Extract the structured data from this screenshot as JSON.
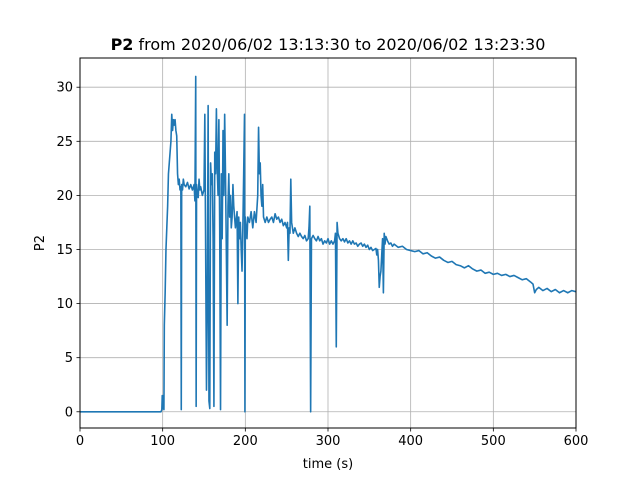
{
  "chart_data": {
    "type": "line",
    "title_bold": "P2",
    "title_rest": " from 2020/06/02 13:13:30 to 2020/06/02 13:23:30",
    "xlabel": "time (s)",
    "ylabel": "P2",
    "xlim": [
      0,
      600
    ],
    "ylim": [
      -1.5,
      32.7
    ],
    "xticks": [
      0,
      100,
      200,
      300,
      400,
      500,
      600
    ],
    "yticks": [
      0,
      5,
      10,
      15,
      20,
      25,
      30
    ],
    "grid": true,
    "legend": "none",
    "series": [
      {
        "color": "#1f77b4",
        "points": [
          [
            0,
            0
          ],
          [
            98,
            0
          ],
          [
            99,
            0.2
          ],
          [
            99.5,
            1.5
          ],
          [
            100,
            0.3
          ],
          [
            101,
            1.5
          ],
          [
            101.5,
            0.2
          ],
          [
            102,
            8
          ],
          [
            103,
            11
          ],
          [
            104,
            15
          ],
          [
            105,
            17
          ],
          [
            106,
            19
          ],
          [
            107,
            22
          ],
          [
            108,
            23
          ],
          [
            109,
            24
          ],
          [
            110,
            25
          ],
          [
            111,
            27.5
          ],
          [
            112,
            26
          ],
          [
            113,
            27
          ],
          [
            114,
            26.5
          ],
          [
            115,
            27
          ],
          [
            116,
            26
          ],
          [
            117,
            25.5
          ],
          [
            118,
            22
          ],
          [
            119,
            21
          ],
          [
            120,
            21.5
          ],
          [
            121,
            20.5
          ],
          [
            122,
            20.8
          ],
          [
            122.5,
            0.2
          ],
          [
            123,
            21
          ],
          [
            124,
            20.5
          ],
          [
            125,
            21.5
          ],
          [
            126,
            21
          ],
          [
            128,
            20.8
          ],
          [
            130,
            21.2
          ],
          [
            132,
            20.6
          ],
          [
            134,
            21
          ],
          [
            136,
            20.5
          ],
          [
            138,
            21
          ],
          [
            139,
            19.5
          ],
          [
            140,
            31
          ],
          [
            140.5,
            0.5
          ],
          [
            141,
            21
          ],
          [
            142,
            20
          ],
          [
            143,
            19.8
          ],
          [
            144,
            21.5
          ],
          [
            145,
            20.5
          ],
          [
            146,
            20.8
          ],
          [
            148,
            20
          ],
          [
            150,
            20.5
          ],
          [
            151,
            27.5
          ],
          [
            152,
            15
          ],
          [
            153,
            2
          ],
          [
            154,
            10
          ],
          [
            155,
            28.3
          ],
          [
            156,
            1
          ],
          [
            157,
            0.3
          ],
          [
            158,
            23
          ],
          [
            159,
            21
          ],
          [
            160,
            22
          ],
          [
            161,
            16
          ],
          [
            162,
            0.5
          ],
          [
            163,
            24
          ],
          [
            164,
            22
          ],
          [
            165,
            28
          ],
          [
            166,
            22.5
          ],
          [
            167,
            20
          ],
          [
            168,
            27
          ],
          [
            169,
            17
          ],
          [
            170,
            0.2
          ],
          [
            171,
            22
          ],
          [
            172,
            16
          ],
          [
            173,
            26
          ],
          [
            174,
            20
          ],
          [
            175,
            27.5
          ],
          [
            176,
            22
          ],
          [
            177,
            15
          ],
          [
            178,
            8
          ],
          [
            179,
            19
          ],
          [
            180,
            22
          ],
          [
            181,
            18
          ],
          [
            182,
            20
          ],
          [
            183,
            17
          ],
          [
            184,
            18
          ],
          [
            185,
            21
          ],
          [
            186,
            19
          ],
          [
            188,
            17
          ],
          [
            190,
            18.5
          ],
          [
            191,
            10
          ],
          [
            192,
            18
          ],
          [
            193,
            16
          ],
          [
            194,
            17.5
          ],
          [
            195,
            15
          ],
          [
            196,
            13
          ],
          [
            197,
            17
          ],
          [
            198,
            22
          ],
          [
            199,
            27.5
          ],
          [
            199.5,
            0
          ],
          [
            200,
            18
          ],
          [
            201,
            17
          ],
          [
            202,
            16
          ],
          [
            203,
            18
          ],
          [
            205,
            17.5
          ],
          [
            207,
            18.5
          ],
          [
            209,
            17
          ],
          [
            211,
            18.5
          ],
          [
            213,
            17.5
          ],
          [
            215,
            20
          ],
          [
            216,
            26.3
          ],
          [
            217,
            22
          ],
          [
            218,
            23
          ],
          [
            219,
            20
          ],
          [
            220,
            19
          ],
          [
            221,
            21
          ],
          [
            222,
            18
          ],
          [
            224,
            17.5
          ],
          [
            226,
            18
          ],
          [
            228,
            17.5
          ],
          [
            230,
            17.8
          ],
          [
            232,
            18
          ],
          [
            234,
            17.5
          ],
          [
            236,
            18.3
          ],
          [
            238,
            17.8
          ],
          [
            240,
            18
          ],
          [
            242,
            17.5
          ],
          [
            244,
            17.8
          ],
          [
            246,
            17.2
          ],
          [
            248,
            17.5
          ],
          [
            250,
            17
          ],
          [
            251,
            17.5
          ],
          [
            252,
            14
          ],
          [
            253,
            17
          ],
          [
            254,
            16.5
          ],
          [
            255,
            21.5
          ],
          [
            256,
            17.5
          ],
          [
            257,
            17
          ],
          [
            258,
            16.5
          ],
          [
            260,
            17
          ],
          [
            262,
            16.5
          ],
          [
            264,
            16.2
          ],
          [
            266,
            16.5
          ],
          [
            268,
            16.2
          ],
          [
            270,
            16
          ],
          [
            272,
            16.3
          ],
          [
            274,
            15.8
          ],
          [
            276,
            16
          ],
          [
            277,
            17
          ],
          [
            278,
            19
          ],
          [
            279,
            0
          ],
          [
            280,
            16
          ],
          [
            282,
            16.3
          ],
          [
            284,
            16
          ],
          [
            286,
            15.8
          ],
          [
            288,
            16.2
          ],
          [
            290,
            15.8
          ],
          [
            292,
            16
          ],
          [
            294,
            15.5
          ],
          [
            296,
            15.8
          ],
          [
            298,
            15.6
          ],
          [
            300,
            16
          ],
          [
            302,
            15.5
          ],
          [
            304,
            15.8
          ],
          [
            306,
            15.5
          ],
          [
            308,
            15.8
          ],
          [
            309,
            16.5
          ],
          [
            310,
            6
          ],
          [
            311,
            17.5
          ],
          [
            312,
            16.5
          ],
          [
            314,
            16
          ],
          [
            316,
            15.8
          ],
          [
            318,
            16
          ],
          [
            320,
            15.7
          ],
          [
            322,
            16
          ],
          [
            324,
            15.6
          ],
          [
            326,
            15.8
          ],
          [
            328,
            15.5
          ],
          [
            330,
            15.8
          ],
          [
            332,
            15.5
          ],
          [
            334,
            15.6
          ],
          [
            336,
            15.3
          ],
          [
            338,
            15.5
          ],
          [
            340,
            15.6
          ],
          [
            342,
            15.3
          ],
          [
            344,
            15.5
          ],
          [
            346,
            15.2
          ],
          [
            348,
            15.4
          ],
          [
            350,
            15
          ],
          [
            352,
            15.2
          ],
          [
            354,
            14.9
          ],
          [
            356,
            15
          ],
          [
            358,
            15.1
          ],
          [
            359,
            14.5
          ],
          [
            360,
            15
          ],
          [
            361,
            14
          ],
          [
            362,
            11.5
          ],
          [
            363,
            12.5
          ],
          [
            364,
            13
          ],
          [
            365,
            14.5
          ],
          [
            366,
            16
          ],
          [
            367,
            11
          ],
          [
            368,
            16.5
          ],
          [
            369,
            15.5
          ],
          [
            370,
            16.2
          ],
          [
            372,
            15.8
          ],
          [
            374,
            15.5
          ],
          [
            376,
            15.6
          ],
          [
            378,
            15.3
          ],
          [
            380,
            15.5
          ],
          [
            385,
            15.2
          ],
          [
            390,
            15.3
          ],
          [
            395,
            15
          ],
          [
            400,
            14.9
          ],
          [
            405,
            14.8
          ],
          [
            410,
            14.9
          ],
          [
            415,
            14.6
          ],
          [
            420,
            14.7
          ],
          [
            425,
            14.4
          ],
          [
            430,
            14.2
          ],
          [
            435,
            14.3
          ],
          [
            440,
            14
          ],
          [
            445,
            13.8
          ],
          [
            450,
            13.9
          ],
          [
            455,
            13.6
          ],
          [
            460,
            13.5
          ],
          [
            465,
            13.3
          ],
          [
            470,
            13.5
          ],
          [
            475,
            13.2
          ],
          [
            480,
            13
          ],
          [
            485,
            13.1
          ],
          [
            490,
            12.8
          ],
          [
            495,
            12.9
          ],
          [
            500,
            12.7
          ],
          [
            505,
            12.8
          ],
          [
            510,
            12.6
          ],
          [
            515,
            12.7
          ],
          [
            520,
            12.5
          ],
          [
            525,
            12.6
          ],
          [
            530,
            12.4
          ],
          [
            535,
            12.2
          ],
          [
            540,
            12.3
          ],
          [
            545,
            12
          ],
          [
            548,
            11.8
          ],
          [
            550,
            11
          ],
          [
            552,
            11.3
          ],
          [
            555,
            11.5
          ],
          [
            560,
            11.2
          ],
          [
            565,
            11.4
          ],
          [
            570,
            11.1
          ],
          [
            575,
            11.3
          ],
          [
            580,
            11
          ],
          [
            585,
            11.2
          ],
          [
            590,
            11
          ],
          [
            595,
            11.2
          ],
          [
            600,
            11.1
          ]
        ]
      }
    ]
  }
}
